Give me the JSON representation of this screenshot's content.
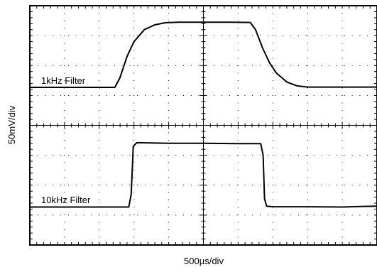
{
  "chart_data": {
    "type": "line",
    "xlabel": "500µs/div",
    "ylabel": "50mV/div",
    "x_divisions": 10,
    "y_divisions": 8,
    "grid": true,
    "x_unit": "div",
    "y_unit": "div",
    "xlim": [
      0,
      10
    ],
    "ylim": [
      0,
      8
    ],
    "series": [
      {
        "name": "1kHz Filter",
        "annotation": "1kHz Filter",
        "points": [
          [
            0.0,
            5.27
          ],
          [
            0.8,
            5.27
          ],
          [
            1.5,
            5.27
          ],
          [
            2.2,
            5.27
          ],
          [
            2.45,
            5.27
          ],
          [
            2.6,
            5.6
          ],
          [
            2.8,
            6.3
          ],
          [
            3.0,
            6.8
          ],
          [
            3.3,
            7.2
          ],
          [
            3.6,
            7.36
          ],
          [
            3.9,
            7.43
          ],
          [
            4.3,
            7.45
          ],
          [
            5.0,
            7.45
          ],
          [
            5.7,
            7.45
          ],
          [
            6.35,
            7.44
          ],
          [
            6.5,
            7.2
          ],
          [
            6.7,
            6.6
          ],
          [
            6.9,
            6.1
          ],
          [
            7.1,
            5.75
          ],
          [
            7.4,
            5.45
          ],
          [
            7.7,
            5.32
          ],
          [
            8.0,
            5.28
          ],
          [
            9.0,
            5.28
          ],
          [
            10.0,
            5.28
          ]
        ]
      },
      {
        "name": "10kHz Filter",
        "annotation": "10kHz Filter",
        "points": [
          [
            0.0,
            1.27
          ],
          [
            1.0,
            1.27
          ],
          [
            2.0,
            1.27
          ],
          [
            2.85,
            1.27
          ],
          [
            2.92,
            1.7
          ],
          [
            2.98,
            3.3
          ],
          [
            3.08,
            3.42
          ],
          [
            4.0,
            3.4
          ],
          [
            5.0,
            3.4
          ],
          [
            6.0,
            3.39
          ],
          [
            6.65,
            3.39
          ],
          [
            6.72,
            3.0
          ],
          [
            6.76,
            1.55
          ],
          [
            6.82,
            1.3
          ],
          [
            7.0,
            1.28
          ],
          [
            8.0,
            1.28
          ],
          [
            9.0,
            1.27
          ],
          [
            10.0,
            1.3
          ]
        ]
      }
    ]
  }
}
